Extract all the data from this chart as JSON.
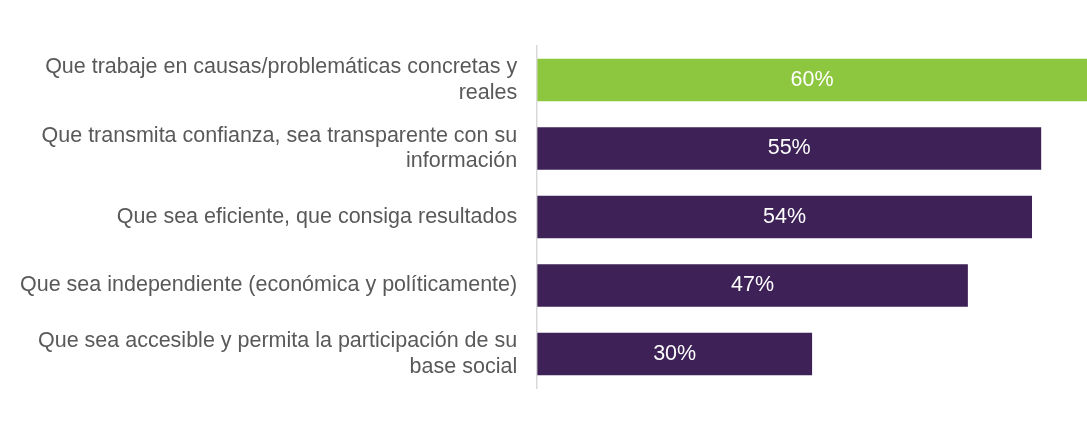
{
  "chart_data": {
    "type": "bar",
    "orientation": "horizontal",
    "categories": [
      "Que trabaje en causas/problemáticas concretas y reales",
      "Que transmita confianza, sea transparente con su información",
      "Que sea eficiente, que consiga resultados",
      "Que sea independiente (económica y políticamente)",
      "Que sea accesible y permita la participación de su base social"
    ],
    "values": [
      60,
      55,
      54,
      47,
      30
    ],
    "colors": [
      "#8dc63f",
      "#3d2157",
      "#3d2157",
      "#3d2157",
      "#3d2157"
    ],
    "value_labels": [
      "60%",
      "55%",
      "54%",
      "47%",
      "30%"
    ],
    "legend": false
  }
}
